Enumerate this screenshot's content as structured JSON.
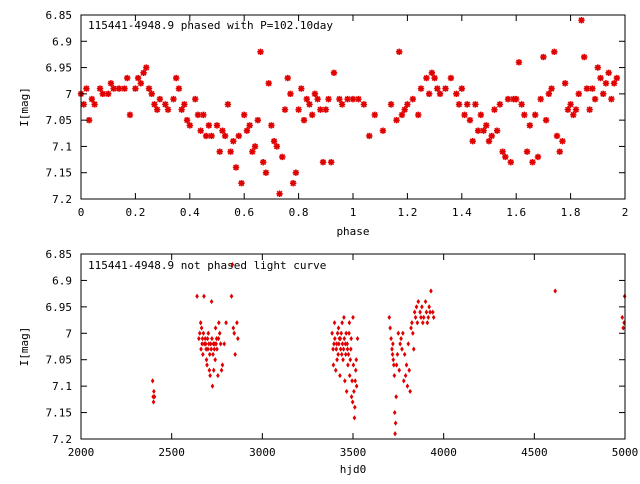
{
  "chart_data": [
    {
      "type": "scatter",
      "title": "115441-4948.9 phased with P=102.10day",
      "xlabel": "phase",
      "ylabel": "I[mag]",
      "xlim": [
        0,
        2
      ],
      "ylim": [
        6.85,
        7.2
      ],
      "y_inverted": true,
      "grid": false,
      "marker": "asterisk",
      "color": "#e00000",
      "x_ticks": [
        "0",
        "0.2",
        "0.4",
        "0.6",
        "0.8",
        "1",
        "1.2",
        "1.4",
        "1.6",
        "1.8",
        "2"
      ],
      "y_ticks": [
        "6.85",
        "6.9",
        "6.95",
        "7",
        "7.05",
        "7.1",
        "7.15",
        "7.2"
      ],
      "points": [
        [
          0.0,
          7.0
        ],
        [
          0.01,
          7.02
        ],
        [
          0.02,
          6.99
        ],
        [
          0.03,
          7.05
        ],
        [
          0.04,
          7.01
        ],
        [
          0.05,
          7.02
        ],
        [
          0.07,
          6.99
        ],
        [
          0.08,
          7.0
        ],
        [
          0.1,
          7.0
        ],
        [
          0.11,
          6.98
        ],
        [
          0.12,
          6.99
        ],
        [
          0.14,
          6.99
        ],
        [
          0.16,
          6.99
        ],
        [
          0.17,
          6.97
        ],
        [
          0.18,
          7.04
        ],
        [
          0.2,
          6.99
        ],
        [
          0.21,
          6.97
        ],
        [
          0.22,
          6.98
        ],
        [
          0.23,
          6.96
        ],
        [
          0.24,
          6.95
        ],
        [
          0.25,
          6.99
        ],
        [
          0.26,
          7.0
        ],
        [
          0.27,
          7.02
        ],
        [
          0.28,
          7.03
        ],
        [
          0.29,
          7.01
        ],
        [
          0.31,
          7.02
        ],
        [
          0.32,
          7.03
        ],
        [
          0.34,
          7.01
        ],
        [
          0.35,
          6.97
        ],
        [
          0.36,
          6.99
        ],
        [
          0.37,
          7.03
        ],
        [
          0.38,
          7.02
        ],
        [
          0.39,
          7.05
        ],
        [
          0.4,
          7.06
        ],
        [
          0.42,
          7.01
        ],
        [
          0.43,
          7.04
        ],
        [
          0.44,
          7.07
        ],
        [
          0.45,
          7.04
        ],
        [
          0.46,
          7.08
        ],
        [
          0.47,
          7.06
        ],
        [
          0.48,
          7.08
        ],
        [
          0.5,
          7.06
        ],
        [
          0.51,
          7.11
        ],
        [
          0.52,
          7.07
        ],
        [
          0.53,
          7.08
        ],
        [
          0.54,
          7.02
        ],
        [
          0.55,
          7.11
        ],
        [
          0.56,
          7.09
        ],
        [
          0.57,
          7.14
        ],
        [
          0.58,
          7.08
        ],
        [
          0.59,
          7.17
        ],
        [
          0.6,
          7.04
        ],
        [
          0.61,
          7.07
        ],
        [
          0.62,
          7.06
        ],
        [
          0.63,
          7.11
        ],
        [
          0.64,
          7.1
        ],
        [
          0.65,
          7.05
        ],
        [
          0.66,
          6.92
        ],
        [
          0.67,
          7.13
        ],
        [
          0.68,
          7.15
        ],
        [
          0.69,
          6.98
        ],
        [
          0.7,
          7.06
        ],
        [
          0.71,
          7.09
        ],
        [
          0.72,
          7.1
        ],
        [
          0.73,
          7.19
        ],
        [
          0.74,
          7.12
        ],
        [
          0.75,
          7.03
        ],
        [
          0.76,
          6.97
        ],
        [
          0.77,
          7.0
        ],
        [
          0.78,
          7.17
        ],
        [
          0.79,
          7.15
        ],
        [
          0.8,
          7.03
        ],
        [
          0.81,
          6.99
        ],
        [
          0.82,
          7.05
        ],
        [
          0.83,
          7.01
        ],
        [
          0.84,
          7.02
        ],
        [
          0.85,
          7.04
        ],
        [
          0.86,
          7.0
        ],
        [
          0.87,
          7.01
        ],
        [
          0.88,
          7.03
        ],
        [
          0.89,
          7.13
        ],
        [
          0.9,
          7.03
        ],
        [
          0.91,
          7.01
        ],
        [
          0.92,
          7.13
        ],
        [
          0.93,
          6.96
        ],
        [
          0.95,
          7.01
        ],
        [
          0.96,
          7.02
        ],
        [
          0.98,
          7.01
        ],
        [
          1.0,
          7.01
        ],
        [
          1.02,
          7.01
        ],
        [
          1.04,
          7.02
        ],
        [
          1.06,
          7.08
        ],
        [
          1.08,
          7.04
        ],
        [
          1.11,
          7.07
        ],
        [
          1.14,
          7.02
        ],
        [
          1.16,
          7.05
        ],
        [
          1.17,
          6.92
        ],
        [
          1.18,
          7.04
        ],
        [
          1.19,
          7.03
        ],
        [
          1.2,
          7.02
        ],
        [
          1.22,
          7.01
        ],
        [
          1.24,
          7.04
        ],
        [
          1.25,
          6.99
        ],
        [
          1.27,
          6.97
        ],
        [
          1.28,
          7.0
        ],
        [
          1.29,
          6.96
        ],
        [
          1.3,
          6.97
        ],
        [
          1.31,
          6.99
        ],
        [
          1.32,
          7.0
        ],
        [
          1.34,
          6.99
        ],
        [
          1.36,
          6.97
        ],
        [
          1.38,
          7.0
        ],
        [
          1.39,
          7.02
        ],
        [
          1.4,
          6.99
        ],
        [
          1.41,
          7.04
        ],
        [
          1.42,
          7.02
        ],
        [
          1.43,
          7.05
        ],
        [
          1.44,
          7.09
        ],
        [
          1.45,
          7.02
        ],
        [
          1.46,
          7.07
        ],
        [
          1.47,
          7.04
        ],
        [
          1.48,
          7.07
        ],
        [
          1.49,
          7.06
        ],
        [
          1.5,
          7.09
        ],
        [
          1.51,
          7.08
        ],
        [
          1.52,
          7.03
        ],
        [
          1.53,
          7.07
        ],
        [
          1.54,
          7.02
        ],
        [
          1.55,
          7.11
        ],
        [
          1.56,
          7.12
        ],
        [
          1.57,
          7.01
        ],
        [
          1.58,
          7.13
        ],
        [
          1.59,
          7.01
        ],
        [
          1.6,
          7.01
        ],
        [
          1.61,
          6.94
        ],
        [
          1.62,
          7.02
        ],
        [
          1.63,
          7.04
        ],
        [
          1.64,
          7.11
        ],
        [
          1.65,
          7.06
        ],
        [
          1.66,
          7.13
        ],
        [
          1.67,
          7.04
        ],
        [
          1.68,
          7.12
        ],
        [
          1.69,
          7.01
        ],
        [
          1.7,
          6.93
        ],
        [
          1.71,
          7.05
        ],
        [
          1.72,
          7.0
        ],
        [
          1.73,
          6.99
        ],
        [
          1.74,
          6.92
        ],
        [
          1.75,
          7.08
        ],
        [
          1.76,
          7.11
        ],
        [
          1.77,
          7.09
        ],
        [
          1.78,
          6.98
        ],
        [
          1.79,
          7.03
        ],
        [
          1.8,
          7.02
        ],
        [
          1.81,
          7.04
        ],
        [
          1.82,
          7.03
        ],
        [
          1.83,
          7.0
        ],
        [
          1.84,
          6.86
        ],
        [
          1.85,
          6.93
        ],
        [
          1.86,
          6.99
        ],
        [
          1.87,
          7.03
        ],
        [
          1.88,
          6.99
        ],
        [
          1.89,
          7.01
        ],
        [
          1.9,
          6.95
        ],
        [
          1.91,
          6.97
        ],
        [
          1.92,
          7.0
        ],
        [
          1.93,
          6.98
        ],
        [
          1.94,
          6.96
        ],
        [
          1.95,
          7.01
        ],
        [
          1.96,
          6.98
        ],
        [
          1.97,
          6.97
        ]
      ]
    },
    {
      "type": "scatter",
      "title": "115441-4948.9 not phased light curve",
      "xlabel": "hjd0",
      "ylabel": "I[mag]",
      "xlim": [
        2000,
        5000
      ],
      "ylim": [
        6.85,
        7.2
      ],
      "y_inverted": true,
      "grid": false,
      "marker": "diamond",
      "color": "#e00000",
      "x_ticks": [
        "2000",
        "2500",
        "3000",
        "3500",
        "4000",
        "4500",
        "5000"
      ],
      "y_ticks": [
        "6.85",
        "6.9",
        "6.95",
        "7",
        "7.05",
        "7.1",
        "7.15",
        "7.2"
      ],
      "points": [
        [
          2395,
          7.09
        ],
        [
          2398,
          7.12
        ],
        [
          2400,
          7.13
        ],
        [
          2402,
          7.11
        ],
        [
          2405,
          7.12
        ],
        [
          2640,
          6.93
        ],
        [
          2650,
          7.01
        ],
        [
          2655,
          7.0
        ],
        [
          2660,
          6.98
        ],
        [
          2662,
          7.03
        ],
        [
          2665,
          6.99
        ],
        [
          2668,
          7.02
        ],
        [
          2670,
          7.01
        ],
        [
          2672,
          7.04
        ],
        [
          2675,
          7.0
        ],
        [
          2678,
          6.93
        ],
        [
          2680,
          7.02
        ],
        [
          2685,
          7.01
        ],
        [
          2688,
          7.02
        ],
        [
          2690,
          7.03
        ],
        [
          2692,
          7.05
        ],
        [
          2695,
          7.06
        ],
        [
          2698,
          7.01
        ],
        [
          2700,
          7.03
        ],
        [
          2702,
          7.0
        ],
        [
          2705,
          7.02
        ],
        [
          2708,
          7.07
        ],
        [
          2710,
          7.04
        ],
        [
          2712,
          7.08
        ],
        [
          2715,
          7.02
        ],
        [
          2718,
          7.03
        ],
        [
          2720,
          6.94
        ],
        [
          2722,
          7.01
        ],
        [
          2725,
          7.1
        ],
        [
          2728,
          7.04
        ],
        [
          2730,
          7.02
        ],
        [
          2732,
          7.07
        ],
        [
          2735,
          7.03
        ],
        [
          2738,
          7.02
        ],
        [
          2740,
          7.05
        ],
        [
          2742,
          6.99
        ],
        [
          2745,
          7.02
        ],
        [
          2748,
          7.01
        ],
        [
          2750,
          7.03
        ],
        [
          2755,
          7.08
        ],
        [
          2758,
          7.01
        ],
        [
          2760,
          6.98
        ],
        [
          2765,
          7.0
        ],
        [
          2770,
          7.02
        ],
        [
          2775,
          7.07
        ],
        [
          2780,
          7.06
        ],
        [
          2790,
          7.02
        ],
        [
          2800,
          6.98
        ],
        [
          2830,
          6.93
        ],
        [
          2835,
          6.87
        ],
        [
          2840,
          6.99
        ],
        [
          2845,
          7.0
        ],
        [
          2850,
          7.04
        ],
        [
          2860,
          6.98
        ],
        [
          2865,
          7.01
        ],
        [
          3385,
          7.0
        ],
        [
          3390,
          7.03
        ],
        [
          3392,
          7.06
        ],
        [
          3395,
          7.02
        ],
        [
          3398,
          6.98
        ],
        [
          3400,
          7.01
        ],
        [
          3405,
          7.07
        ],
        [
          3408,
          7.03
        ],
        [
          3410,
          7.02
        ],
        [
          3412,
          7.05
        ],
        [
          3415,
          7.0
        ],
        [
          3418,
          7.04
        ],
        [
          3420,
          6.99
        ],
        [
          3422,
          7.02
        ],
        [
          3425,
          7.01
        ],
        [
          3428,
          7.08
        ],
        [
          3430,
          7.01
        ],
        [
          3432,
          7.03
        ],
        [
          3435,
          7.0
        ],
        [
          3438,
          7.04
        ],
        [
          3440,
          6.98
        ],
        [
          3442,
          7.02
        ],
        [
          3445,
          7.05
        ],
        [
          3448,
          7.03
        ],
        [
          3450,
          6.97
        ],
        [
          3452,
          7.01
        ],
        [
          3455,
          7.09
        ],
        [
          3458,
          7.02
        ],
        [
          3460,
          7.04
        ],
        [
          3462,
          7.0
        ],
        [
          3465,
          7.11
        ],
        [
          3468,
          7.02
        ],
        [
          3470,
          7.03
        ],
        [
          3472,
          7.06
        ],
        [
          3475,
          7.04
        ],
        [
          3478,
          7.0
        ],
        [
          3480,
          6.98
        ],
        [
          3482,
          7.08
        ],
        [
          3485,
          7.05
        ],
        [
          3488,
          7.03
        ],
        [
          3490,
          7.01
        ],
        [
          3492,
          7.12
        ],
        [
          3495,
          7.09
        ],
        [
          3498,
          7.13
        ],
        [
          3500,
          6.97
        ],
        [
          3502,
          7.06
        ],
        [
          3505,
          7.11
        ],
        [
          3508,
          7.16
        ],
        [
          3510,
          7.14
        ],
        [
          3512,
          7.09
        ],
        [
          3515,
          7.07
        ],
        [
          3518,
          7.05
        ],
        [
          3520,
          7.1
        ],
        [
          3525,
          7.01
        ],
        [
          3700,
          6.97
        ],
        [
          3705,
          6.99
        ],
        [
          3710,
          7.01
        ],
        [
          3715,
          7.03
        ],
        [
          3718,
          7.04
        ],
        [
          3720,
          7.02
        ],
        [
          3722,
          7.05
        ],
        [
          3725,
          7.06
        ],
        [
          3728,
          7.08
        ],
        [
          3730,
          7.15
        ],
        [
          3732,
          7.19
        ],
        [
          3735,
          7.17
        ],
        [
          3738,
          7.12
        ],
        [
          3740,
          7.06
        ],
        [
          3745,
          7.04
        ],
        [
          3750,
          7.0
        ],
        [
          3755,
          7.07
        ],
        [
          3760,
          7.02
        ],
        [
          3765,
          7.01
        ],
        [
          3770,
          7.03
        ],
        [
          3775,
          7.0
        ],
        [
          3780,
          7.09
        ],
        [
          3785,
          7.04
        ],
        [
          3790,
          7.08
        ],
        [
          3795,
          7.06
        ],
        [
          3800,
          7.1
        ],
        [
          3805,
          7.02
        ],
        [
          3810,
          7.07
        ],
        [
          3815,
          7.11
        ],
        [
          3820,
          6.99
        ],
        [
          3825,
          6.98
        ],
        [
          3830,
          7.0
        ],
        [
          3835,
          7.03
        ],
        [
          3840,
          6.96
        ],
        [
          3845,
          6.97
        ],
        [
          3850,
          6.95
        ],
        [
          3855,
          6.98
        ],
        [
          3860,
          6.94
        ],
        [
          3870,
          6.96
        ],
        [
          3875,
          6.97
        ],
        [
          3880,
          6.95
        ],
        [
          3885,
          6.98
        ],
        [
          3890,
          6.97
        ],
        [
          3900,
          6.94
        ],
        [
          3905,
          6.96
        ],
        [
          3910,
          6.98
        ],
        [
          3915,
          6.97
        ],
        [
          3920,
          6.95
        ],
        [
          3925,
          6.96
        ],
        [
          3930,
          6.92
        ],
        [
          3940,
          6.96
        ],
        [
          3945,
          6.97
        ],
        [
          4615,
          6.92
        ],
        [
          4985,
          6.97
        ],
        [
          4990,
          6.99
        ],
        [
          4995,
          6.98
        ],
        [
          4998,
          6.93
        ]
      ]
    }
  ]
}
